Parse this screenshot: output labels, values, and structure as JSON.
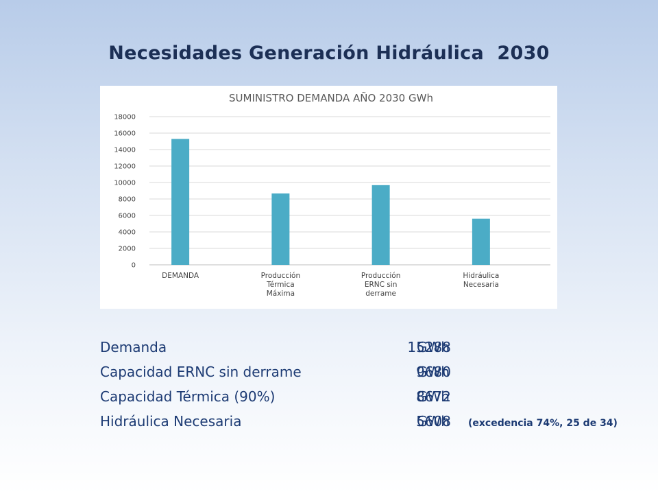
{
  "slide": {
    "title": "Necesidades Generación Hidráulica  2030"
  },
  "chart_data": {
    "type": "bar",
    "title": "SUMINISTRO DEMANDA AÑO 2030 GWh",
    "categories": [
      [
        "DEMANDA"
      ],
      [
        "Producción",
        "Térmica",
        "Máxima"
      ],
      [
        "Producción",
        "ERNC sin",
        "derrame"
      ],
      [
        "Hidráulica",
        "Necesaria"
      ]
    ],
    "values": [
      15288,
      8672,
      9680,
      5608
    ],
    "ylim": [
      0,
      18000
    ],
    "yticks": [
      0,
      2000,
      4000,
      6000,
      8000,
      10000,
      12000,
      14000,
      16000,
      18000
    ],
    "grid": true,
    "bar_color": "#4bacc6"
  },
  "summary": {
    "rows": [
      {
        "label": "Demanda",
        "value": "15288",
        "unit": "GWh",
        "note": ""
      },
      {
        "label": "Capacidad ERNC sin derrame",
        "value": "9680",
        "unit": "GWh",
        "note": ""
      },
      {
        "label": "Capacidad Térmica (90%)",
        "value": "8672",
        "unit": "GWh",
        "note": ""
      },
      {
        "label": "Hidráulica Necesaria",
        "value": "5608",
        "unit": "GWh",
        "note": "(excedencia 74%, 25 de 34)"
      }
    ]
  }
}
